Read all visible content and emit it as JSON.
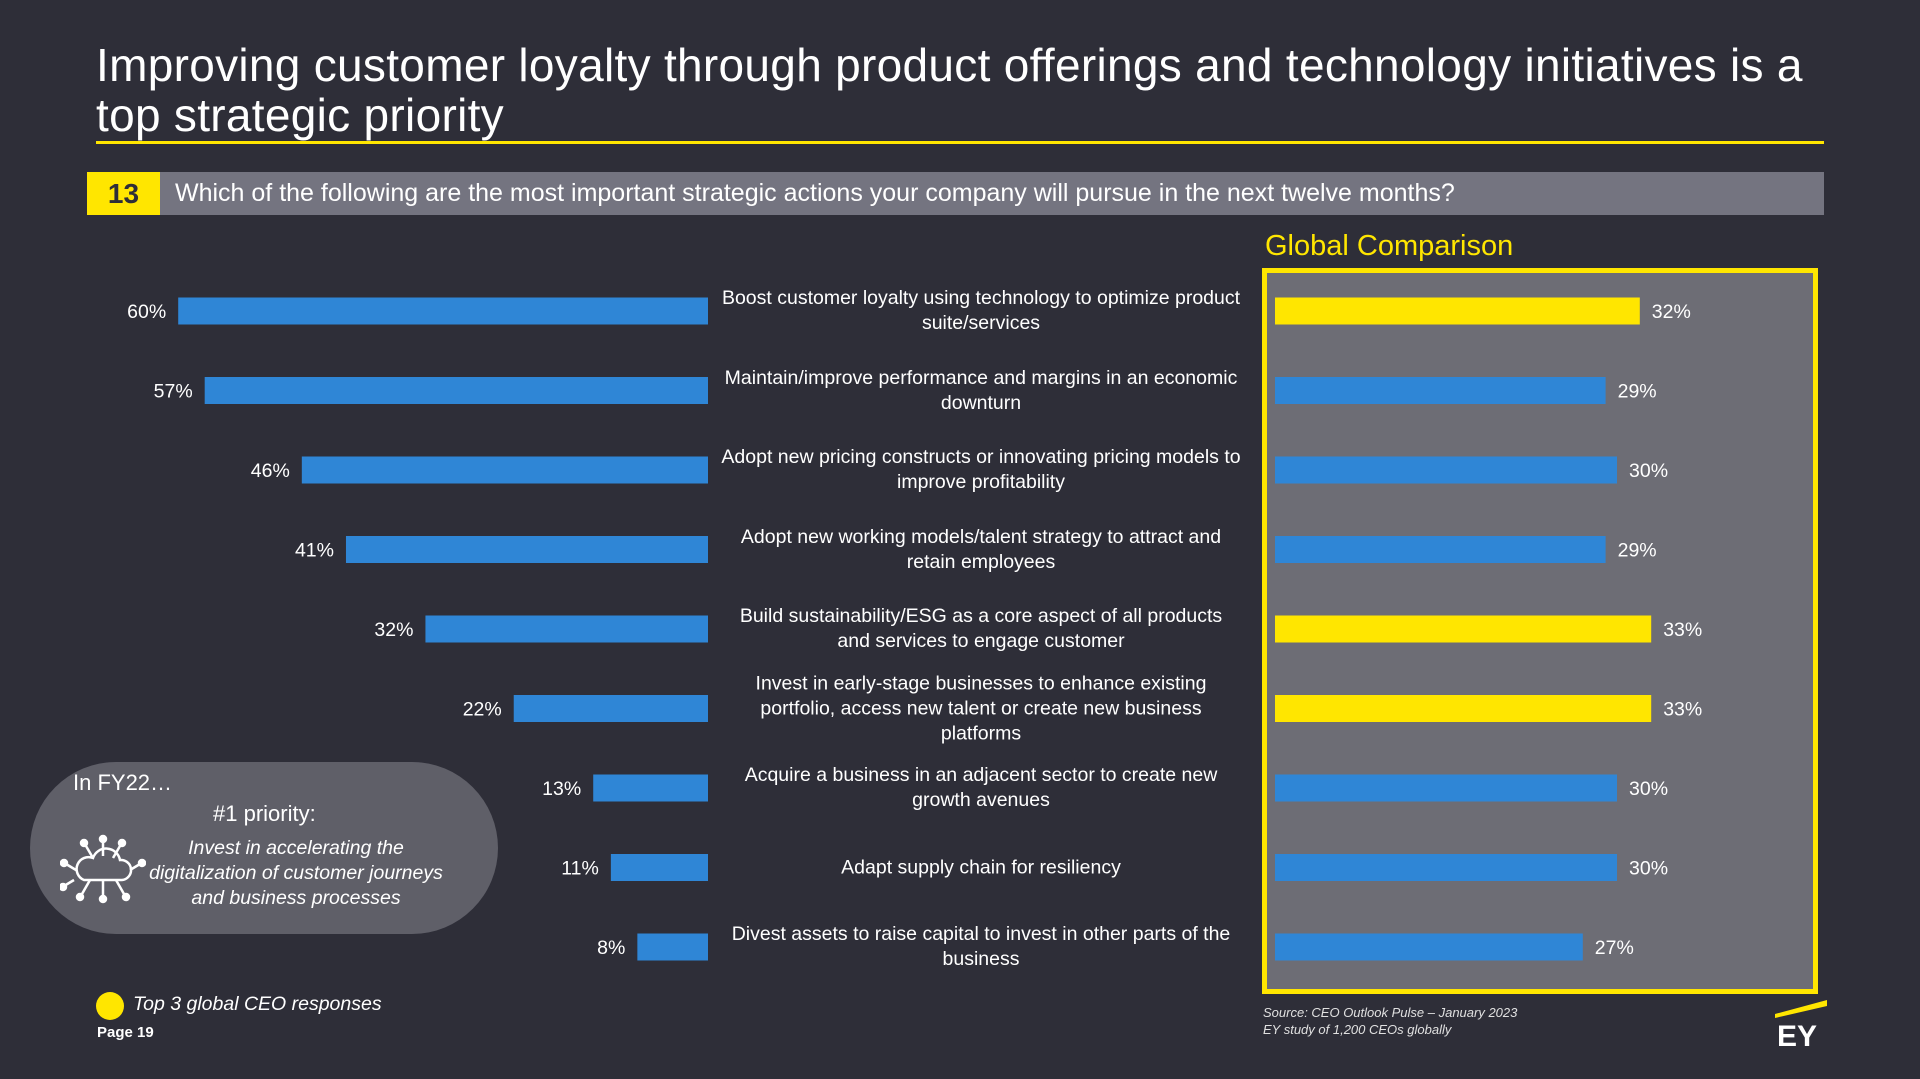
{
  "title": "Improving customer loyalty through product offerings and technology initiatives is a top strategic priority",
  "question": {
    "number": "13",
    "text": "Which of the following are the most important strategic actions your company will pursue in the next twelve months?"
  },
  "global_title": "Global Comparison",
  "colors": {
    "accent": "#ffe600",
    "bar": "#2f86d6",
    "background": "#2e2e38",
    "highlight_box": "#6d6d75"
  },
  "chart_data": {
    "type": "bar",
    "orientation": "horizontal",
    "categories": [
      "Boost customer loyalty using technology to optimize product suite/services",
      "Maintain/improve performance and margins in an economic downturn",
      "Adopt new pricing constructs or innovating pricing models to improve profitability",
      "Adopt new working models/talent strategy to attract and retain employees",
      "Build sustainability/ESG as a core aspect of all products and services to engage customer",
      "Invest in early-stage businesses to enhance existing portfolio, access new talent or create new business platforms",
      "Acquire a business in an adjacent sector to create new growth avenues",
      "Adapt supply chain for resiliency",
      "Divest assets to raise capital to invest in other parts of the business"
    ],
    "series": [
      {
        "values": [
          60,
          57,
          46,
          41,
          32,
          22,
          13,
          11,
          8
        ]
      },
      {
        "name": "Global Comparison",
        "values": [
          32,
          29,
          30,
          29,
          33,
          33,
          30,
          30,
          27
        ],
        "top3": [
          true,
          false,
          false,
          false,
          true,
          true,
          false,
          false,
          false
        ]
      }
    ],
    "value_suffix": "%"
  },
  "fy22": {
    "heading": "In FY22…",
    "subheading": "#1 priority:",
    "text": "Invest in accelerating the digitalization of customer journeys and business processes",
    "icon": "cloud-network-icon"
  },
  "legend": {
    "text": "Top 3 global CEO responses"
  },
  "page": "Page 19",
  "source": {
    "line1": "Source: CEO Outlook Pulse – January 2023",
    "line2": "EY study of 1,200 CEOs globally"
  },
  "logo": "EY"
}
